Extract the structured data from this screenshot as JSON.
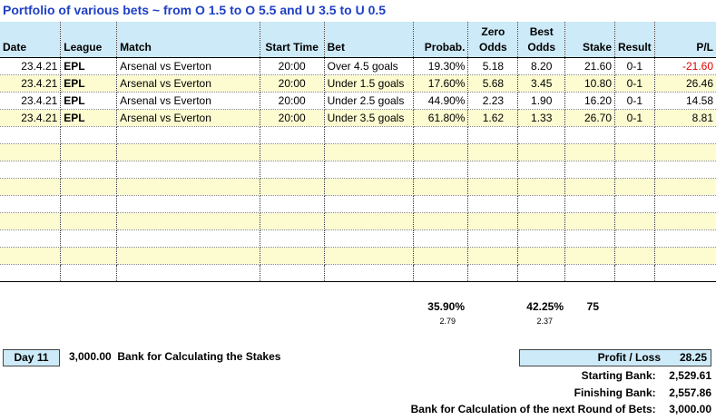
{
  "title": "Portfolio of various bets ~ from O 1.5 to O 5.5 and U 3.5 to U 0.5",
  "headers": {
    "date": "Date",
    "league": "League",
    "match": "Match",
    "start_time": "Start Time",
    "bet": "Bet",
    "probab": "Probab.",
    "zero_odds_1": "Zero",
    "zero_odds_2": "Odds",
    "best_odds_1": "Best",
    "best_odds_2": "Odds",
    "stake": "Stake",
    "result": "Result",
    "pl": "P/L"
  },
  "rows": [
    {
      "date": "23.4.21",
      "league": "EPL",
      "match": "Arsenal vs Everton",
      "time": "20:00",
      "bet": "Over 4.5 goals",
      "prob": "19.30%",
      "zero": "5.18",
      "best": "8.20",
      "stake": "21.60",
      "result": "0-1",
      "pl": "-21.60"
    },
    {
      "date": "23.4.21",
      "league": "EPL",
      "match": "Arsenal vs Everton",
      "time": "20:00",
      "bet": "Under 1.5 goals",
      "prob": "17.60%",
      "zero": "5.68",
      "best": "3.45",
      "stake": "10.80",
      "result": "0-1",
      "pl": "26.46"
    },
    {
      "date": "23.4.21",
      "league": "EPL",
      "match": "Arsenal vs Everton",
      "time": "20:00",
      "bet": "Under 2.5 goals",
      "prob": "44.90%",
      "zero": "2.23",
      "best": "1.90",
      "stake": "16.20",
      "result": "0-1",
      "pl": "14.58"
    },
    {
      "date": "23.4.21",
      "league": "EPL",
      "match": "Arsenal vs Everton",
      "time": "20:00",
      "bet": "Under 3.5 goals",
      "prob": "61.80%",
      "zero": "1.62",
      "best": "1.33",
      "stake": "26.70",
      "result": "0-1",
      "pl": "8.81"
    }
  ],
  "empty_rows": 9,
  "totals": {
    "prob": "35.90%",
    "prob_sub": "2.79",
    "best": "42.25%",
    "best_sub": "2.37",
    "stake": "75"
  },
  "footer": {
    "day": "Day 11",
    "bank_value": "3,000.00",
    "bank_label": "Bank for Calculating the Stakes",
    "profit_loss_label": "Profit / Loss",
    "profit_loss_value": "28.25",
    "starting_bank_label": "Starting Bank:",
    "starting_bank_value": "2,529.61",
    "finishing_bank_label": "Finishing Bank:",
    "finishing_bank_value": "2,557.86",
    "next_bank_label": "Bank for Calculation of the next Round of Bets:",
    "next_bank_value": "3,000.00"
  },
  "colors": {
    "header_fill": "#cdeaf8",
    "stripe_fill": "#fdfbd0",
    "title": "#1f3fc4",
    "negative": "#e00000"
  }
}
